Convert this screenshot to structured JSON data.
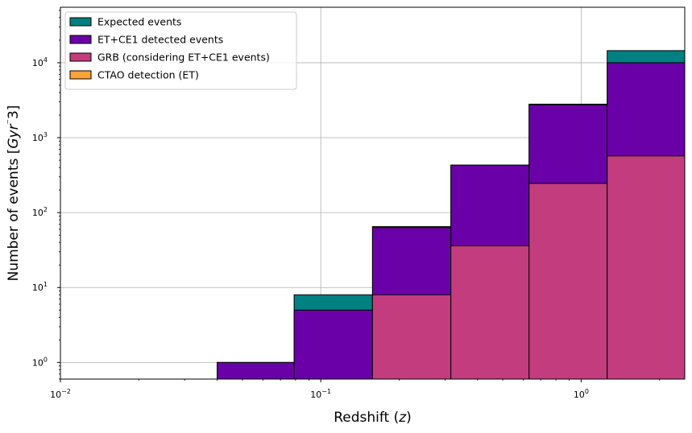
{
  "chart_data": {
    "type": "bar",
    "x_scale": "log",
    "y_scale": "log",
    "xlim": [
      0.01,
      2.5
    ],
    "ylim": [
      0.6,
      55000
    ],
    "grid": true,
    "legend_placement": "top-left",
    "xlabel_parts": [
      "Redshift (",
      "z",
      ")"
    ],
    "ylabel_parts": [
      "Number of events [",
      "Gyr",
      "⁻",
      "3]"
    ],
    "x_ticks": [
      {
        "value": 0.01,
        "base": "10",
        "exp": "−2"
      },
      {
        "value": 0.1,
        "base": "10",
        "exp": "−1"
      },
      {
        "value": 1,
        "base": "10",
        "exp": "0"
      }
    ],
    "y_ticks": [
      {
        "value": 1,
        "base": "10",
        "exp": "0"
      },
      {
        "value": 10,
        "base": "10",
        "exp": "1"
      },
      {
        "value": 100,
        "base": "10",
        "exp": "2"
      },
      {
        "value": 1000,
        "base": "10",
        "exp": "3"
      },
      {
        "value": 10000,
        "base": "10",
        "exp": "4"
      }
    ],
    "bin_edges": [
      0.04,
      0.079,
      0.158,
      0.316,
      0.631,
      1.259,
      2.512
    ],
    "series": [
      {
        "name": "Expected events",
        "color": "#008080",
        "values": [
          1,
          8,
          65,
          430,
          2800,
          14500
        ]
      },
      {
        "name": "ET+CE1 detected events",
        "color": "#6a00a8",
        "values": [
          1,
          5,
          63,
          430,
          2750,
          10000
        ]
      },
      {
        "name": "GRB (considering ET+CE1 events)",
        "color": "#c33d7e",
        "values": [
          0,
          0,
          8,
          36,
          245,
          570
        ]
      },
      {
        "name": "CTAO detection (ET)",
        "color": "#faa33b",
        "values": [
          0,
          0,
          0,
          0,
          0,
          0
        ]
      }
    ]
  }
}
